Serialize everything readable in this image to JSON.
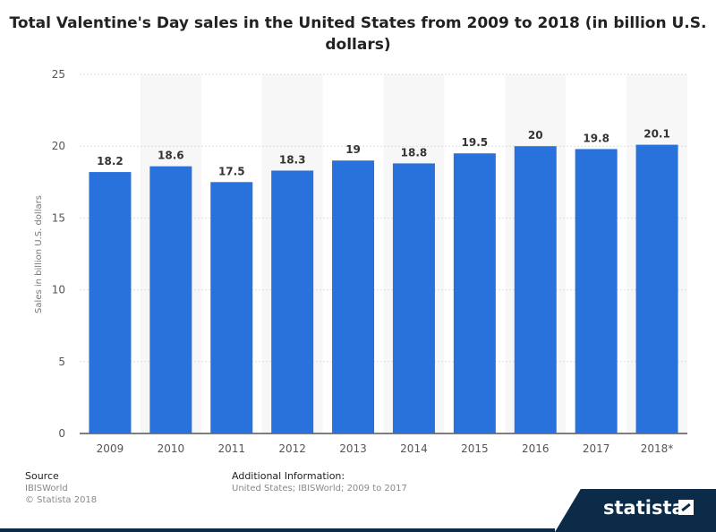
{
  "chart_data": {
    "type": "bar",
    "title": "Total Valentine's Day sales in the United States from 2009 to 2018 (in billion U.S. dollars)",
    "xlabel": "",
    "ylabel": "Sales in billion U.S. dollars",
    "categories": [
      "2009",
      "2010",
      "2011",
      "2012",
      "2013",
      "2014",
      "2015",
      "2016",
      "2017",
      "2018*"
    ],
    "values": [
      18.2,
      18.6,
      17.5,
      18.3,
      19,
      18.8,
      19.5,
      20,
      19.8,
      20.1
    ],
    "value_labels": [
      "18.2",
      "18.6",
      "17.5",
      "18.3",
      "19",
      "18.8",
      "19.5",
      "20",
      "19.8",
      "20.1"
    ],
    "ylim": [
      0,
      25
    ],
    "yticks": [
      0,
      5,
      10,
      15,
      20,
      25
    ],
    "grid": true,
    "bar_color": "#2a72db",
    "band_color": "#f7f7f7"
  },
  "footer": {
    "source_heading": "Source",
    "source_lines": [
      "IBISWorld",
      "© Statista 2018"
    ],
    "info_heading": "Additional Information:",
    "info_text": "United States; IBISWorld; 2009 to 2017"
  },
  "brand": {
    "name": "statista",
    "color": "#0b2b49"
  }
}
